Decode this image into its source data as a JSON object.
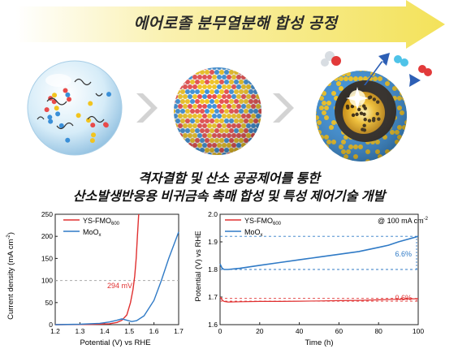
{
  "banner": {
    "title": "에어로졸 분무열분해 합성 공정",
    "arrow_color": "#f3e25a"
  },
  "illustration": {
    "stages": [
      "droplet-icon",
      "particle-sphere-icon",
      "yolk-shell-catalyst-icon"
    ],
    "separator": "chevron-right-icon",
    "particle_colors": [
      "#e84a4a",
      "#f2c41e",
      "#3a8fd8"
    ]
  },
  "headline": {
    "line1": "격자결함 및 산소 공공제어를 통한",
    "line2": "산소발생반응용 비귀금속 촉매 합성 및 특성 제어기술 개발"
  },
  "charts": {
    "lsv": {
      "ylabel": "Current density (mA cm",
      "ylabel_sup": "-2",
      "ylabel_close": ")",
      "xlabel": "Potential (V) vs RHE",
      "annotation": "294 mV",
      "legend": [
        {
          "label": "YS-FMO",
          "sub": "600",
          "color": "#e03030"
        },
        {
          "label": "MoO",
          "sub": "x",
          "color": "#2f7ac6"
        }
      ]
    },
    "stability": {
      "ylabel": "Potential (V) vs RHE",
      "xlabel": "Time (h)",
      "condition": "@ 100 mA cm",
      "condition_sup": "-2",
      "annotation_moo": "6.6%",
      "annotation_ys": "0.6%",
      "legend": [
        {
          "label": "YS-FMO",
          "sub": "600",
          "color": "#e03030"
        },
        {
          "label": "MoO",
          "sub": "x",
          "color": "#2f7ac6"
        }
      ]
    }
  },
  "chart_data": [
    {
      "type": "line",
      "xlabel": "Potential (V) vs RHE",
      "ylabel": "Current density (mA cm-2)",
      "xlim": [
        1.2,
        1.7
      ],
      "ylim": [
        0,
        250
      ],
      "xticks": [
        "1.2",
        "1.3",
        "1.4",
        "1.5",
        "1.6",
        "1.7"
      ],
      "yticks": [
        "0",
        "50",
        "100",
        "150",
        "200",
        "250"
      ],
      "grid": false,
      "legend": "top-left",
      "reference_line": {
        "y": 100,
        "style": "dashed"
      },
      "annotation": "294 mV",
      "series": [
        {
          "name": "YS-FMO600",
          "color": "#e03030",
          "x": [
            1.2,
            1.35,
            1.42,
            1.45,
            1.47,
            1.49,
            1.505,
            1.515,
            1.522,
            1.528,
            1.533,
            1.538
          ],
          "y": [
            0,
            0.5,
            2,
            5,
            10,
            22,
            50,
            80,
            110,
            150,
            200,
            250
          ]
        },
        {
          "name": "MoOx",
          "color": "#2f7ac6",
          "x": [
            1.2,
            1.3,
            1.38,
            1.42,
            1.45,
            1.47,
            1.49,
            1.51,
            1.53,
            1.56,
            1.6,
            1.63,
            1.66,
            1.69,
            1.7
          ],
          "y": [
            0,
            1,
            3,
            6,
            10,
            13,
            10,
            7,
            9,
            20,
            55,
            100,
            150,
            195,
            210
          ]
        }
      ]
    },
    {
      "type": "line",
      "xlabel": "Time (h)",
      "ylabel": "Potential (V) vs RHE",
      "xlim": [
        0,
        100
      ],
      "ylim": [
        1.6,
        2.0
      ],
      "xticks": [
        "0",
        "20",
        "40",
        "60",
        "80",
        "100"
      ],
      "yticks": [
        "1.6",
        "1.7",
        "1.8",
        "1.9",
        "2.0"
      ],
      "grid": false,
      "legend": "top-left",
      "annotation": "@ 100 mA cm-2",
      "reference_lines": [
        {
          "y": 1.8,
          "style": "dashed",
          "color": "#2f7ac6"
        },
        {
          "y": 1.92,
          "style": "dashed",
          "color": "#2f7ac6"
        },
        {
          "y": 1.685,
          "style": "dashed",
          "color": "#e03030"
        },
        {
          "y": 1.695,
          "style": "dashed",
          "color": "#e03030"
        }
      ],
      "series": [
        {
          "name": "YS-FMO600",
          "color": "#e03030",
          "x": [
            0,
            1,
            2,
            4,
            10,
            20,
            30,
            40,
            50,
            60,
            70,
            80,
            90,
            95,
            100
          ],
          "y": [
            1.7,
            1.69,
            1.684,
            1.682,
            1.683,
            1.684,
            1.684,
            1.685,
            1.686,
            1.687,
            1.688,
            1.69,
            1.692,
            1.693,
            1.694
          ]
        },
        {
          "name": "MoOx",
          "color": "#2f7ac6",
          "x": [
            0,
            1,
            2,
            4,
            10,
            20,
            30,
            40,
            50,
            60,
            70,
            80,
            85,
            90,
            95,
            100
          ],
          "y": [
            1.82,
            1.805,
            1.8,
            1.8,
            1.804,
            1.815,
            1.825,
            1.835,
            1.845,
            1.855,
            1.865,
            1.88,
            1.888,
            1.9,
            1.91,
            1.92
          ]
        }
      ]
    }
  ]
}
